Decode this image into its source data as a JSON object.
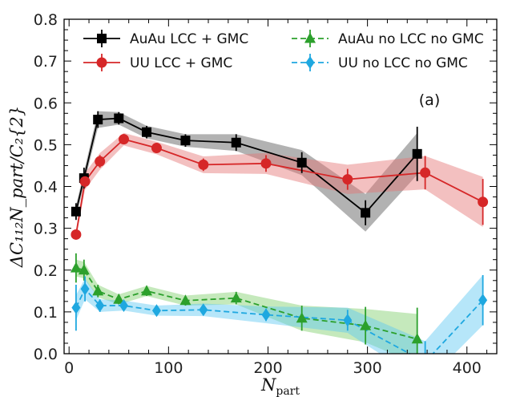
{
  "chart_data": {
    "type": "line",
    "title": "",
    "panel_label": "(a)",
    "xlabel": "N",
    "xlabel_sub": "part",
    "ylabel": "ΔC₁₁₂N_part/C₂{2}",
    "xlim": [
      -5,
      430
    ],
    "ylim": [
      0.0,
      0.8
    ],
    "x_ticks": [
      0,
      100,
      200,
      300,
      400
    ],
    "y_ticks": [
      0.0,
      0.1,
      0.2,
      0.3,
      0.4,
      0.5,
      0.6,
      0.7,
      0.8
    ],
    "x_tick_labels": [
      "0",
      "100",
      "200",
      "300",
      "400"
    ],
    "y_tick_labels": [
      "0.0",
      "0.1",
      "0.2",
      "0.3",
      "0.4",
      "0.5",
      "0.6",
      "0.7",
      "0.8"
    ],
    "grid": false,
    "legend_position": "top",
    "series": [
      {
        "name": "AuAu LCC + GMC",
        "color": "#000000",
        "band_color": "#555555",
        "marker": "square",
        "dash": "solid",
        "x": [
          7,
          15,
          29,
          50,
          78,
          117,
          168,
          234,
          298,
          350
        ],
        "y": [
          0.34,
          0.42,
          0.56,
          0.563,
          0.53,
          0.51,
          0.505,
          0.457,
          0.337,
          0.478
        ],
        "err": [
          0.02,
          0.025,
          0.02,
          0.015,
          0.015,
          0.015,
          0.02,
          0.025,
          0.03,
          0.065
        ],
        "band": [
          0.015,
          0.015,
          0.02,
          0.015,
          0.015,
          0.015,
          0.02,
          0.03,
          0.045,
          0.05
        ]
      },
      {
        "name": "UU LCC + GMC",
        "color": "#d62728",
        "band_color": "#e57373",
        "marker": "circle",
        "dash": "solid",
        "x": [
          7,
          16,
          31,
          55,
          88,
          135,
          198,
          280,
          358,
          416
        ],
        "y": [
          0.285,
          0.412,
          0.46,
          0.513,
          0.492,
          0.452,
          0.455,
          0.417,
          0.433,
          0.363
        ],
        "err": [
          0.01,
          0.015,
          0.015,
          0.012,
          0.012,
          0.015,
          0.02,
          0.025,
          0.04,
          0.055
        ],
        "band": [
          0.01,
          0.02,
          0.02,
          0.015,
          0.015,
          0.02,
          0.025,
          0.035,
          0.04,
          0.06
        ]
      },
      {
        "name": "AuAu no LCC no GMC",
        "color": "#2ca02c",
        "band_color": "#7fcf6b",
        "marker": "triangle",
        "dash": "dashed",
        "x": [
          7,
          15,
          29,
          50,
          78,
          117,
          168,
          234,
          298,
          350
        ],
        "y": [
          0.205,
          0.2,
          0.15,
          0.13,
          0.15,
          0.127,
          0.133,
          0.085,
          0.067,
          0.035
        ],
        "err": [
          0.035,
          0.025,
          0.015,
          0.012,
          0.012,
          0.012,
          0.015,
          0.03,
          0.045,
          0.075
        ],
        "band": [
          0.02,
          0.02,
          0.015,
          0.012,
          0.012,
          0.012,
          0.015,
          0.03,
          0.04,
          0.06
        ]
      },
      {
        "name": "UU no LCC no GMC",
        "color": "#1fa8e0",
        "band_color": "#5ec8f2",
        "marker": "diamond",
        "dash": "dashed",
        "x": [
          7,
          16,
          31,
          55,
          88,
          135,
          198,
          280,
          358,
          416
        ],
        "y": [
          0.11,
          0.155,
          0.115,
          0.115,
          0.103,
          0.105,
          0.093,
          0.08,
          -0.02,
          0.128
        ],
        "err": [
          0.055,
          0.03,
          0.015,
          0.012,
          0.012,
          0.012,
          0.015,
          0.025,
          0.05,
          0.06
        ],
        "band": [
          0.03,
          0.025,
          0.015,
          0.012,
          0.012,
          0.015,
          0.02,
          0.03,
          0.05,
          0.06
        ]
      }
    ]
  }
}
